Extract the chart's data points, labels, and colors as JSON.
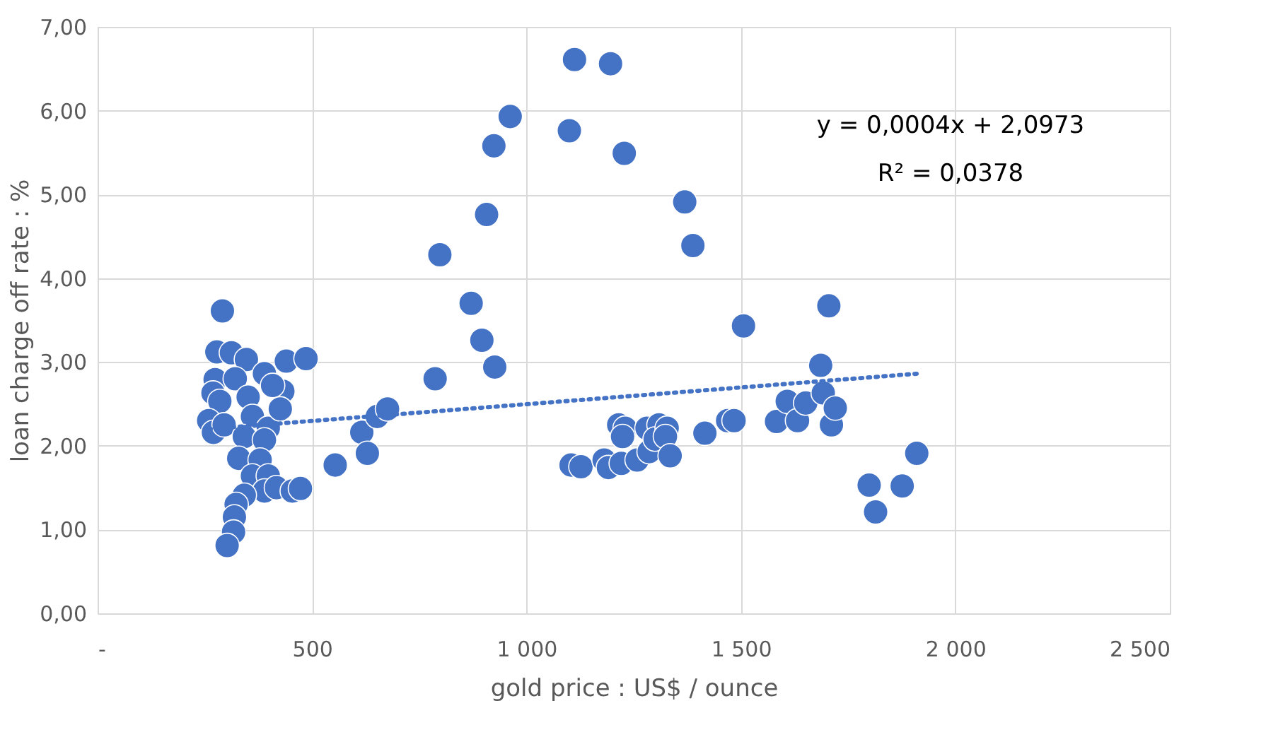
{
  "chart_data": {
    "type": "scatter",
    "xlabel": "gold price : US$ / ounce",
    "ylabel": "loan charge off rate : %",
    "xlim": [
      0,
      2500
    ],
    "ylim": [
      0,
      7
    ],
    "xticks": [
      {
        "value": 0,
        "label": "-"
      },
      500,
      {
        "value": 1000,
        "label": "1 000"
      },
      {
        "value": 1500,
        "label": "1 500"
      },
      {
        "value": 2000,
        "label": "2 000"
      },
      {
        "value": 2500,
        "label": "2 500"
      }
    ],
    "yticks": [
      {
        "value": 0,
        "label": "0,00"
      },
      {
        "value": 1,
        "label": "1,00"
      },
      {
        "value": 2,
        "label": "2,00"
      },
      {
        "value": 3,
        "label": "3,00"
      },
      {
        "value": 4,
        "label": "4,00"
      },
      {
        "value": 5,
        "label": "5,00"
      },
      {
        "value": 6,
        "label": "6,00"
      },
      {
        "value": 7,
        "label": "7,00"
      }
    ],
    "grid": true,
    "marker": "circle",
    "annotations": [
      "y = 0,0004x + 2,0973",
      "R² = 0,0378"
    ],
    "series": [
      {
        "color": "#4472c4",
        "x": [
          291,
          278,
          312,
          347,
          440,
          486,
          274,
          321,
          389,
          269,
          285,
          351,
          432,
          408,
          259,
          270,
          295,
          361,
          398,
          426,
          342,
          389,
          329,
          379,
          361,
          398,
          389,
          417,
          454,
          473,
          342,
          323,
          319,
          317,
          302,
          554,
          616,
          629,
          652,
          676,
          787,
          798,
          871,
          896,
          926,
          907,
          924,
          962,
          1100,
          1112,
          1196,
          1228,
          1369,
          1388,
          1104,
          1127,
          1181,
          1191,
          1221,
          1215,
          1230,
          1224,
          1258,
          1281,
          1286,
          1309,
          1300,
          1328,
          1324,
          1335,
          1416,
          1469,
          1484,
          1506,
          1583,
          1608,
          1632,
          1651,
          1686,
          1692,
          1705,
          1711,
          1720,
          1799,
          1814,
          1876,
          1910
        ],
        "values": [
          3.61,
          3.12,
          3.11,
          3.03,
          3.01,
          3.04,
          2.79,
          2.8,
          2.86,
          2.63,
          2.53,
          2.58,
          2.65,
          2.72,
          2.3,
          2.16,
          2.25,
          2.35,
          2.21,
          2.44,
          2.11,
          2.07,
          1.85,
          1.83,
          1.64,
          1.64,
          1.46,
          1.5,
          1.46,
          1.49,
          1.41,
          1.3,
          1.15,
          0.97,
          0.81,
          1.77,
          2.16,
          1.91,
          2.35,
          2.44,
          2.8,
          4.28,
          3.7,
          3.26,
          2.94,
          4.76,
          5.58,
          5.93,
          5.76,
          6.61,
          6.56,
          5.49,
          4.91,
          4.39,
          1.77,
          1.75,
          1.83,
          1.74,
          1.79,
          2.25,
          2.21,
          2.11,
          1.83,
          2.21,
          1.93,
          2.25,
          2.08,
          2.21,
          2.11,
          1.88,
          2.15,
          2.3,
          2.3,
          3.43,
          2.29,
          2.53,
          2.3,
          2.51,
          2.96,
          2.63,
          3.67,
          2.25,
          2.45,
          1.53,
          1.21,
          1.52,
          1.91
        ]
      },
      {
        "type": "line",
        "color": "#4472c4",
        "line_style": "dotted",
        "marker": "none",
        "x": [
          259,
          1910
        ],
        "values": [
          2.2,
          2.86
        ]
      }
    ]
  }
}
